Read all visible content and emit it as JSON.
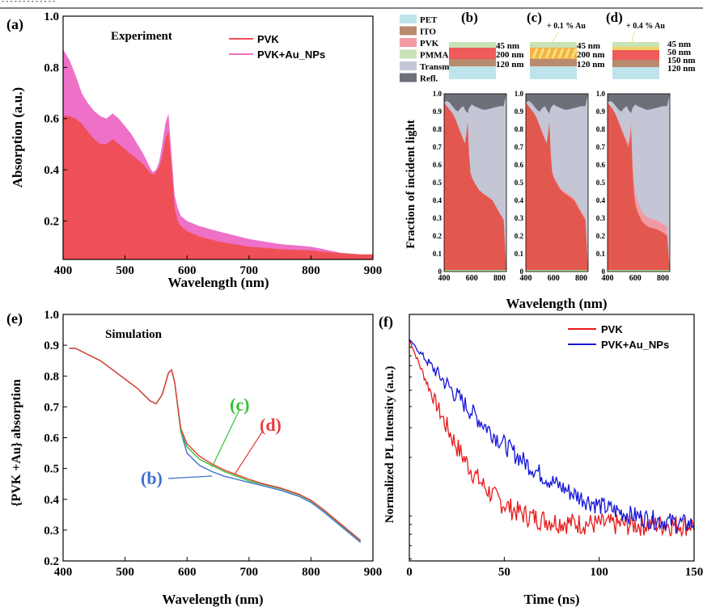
{
  "header_text": "- - - - - - - - - - - - -",
  "legend_items": [
    {
      "label": "PET",
      "color": "#bfe3ea"
    },
    {
      "label": "ITO",
      "color": "#b88a6e"
    },
    {
      "label": "PVK",
      "color": "#f29aa3"
    },
    {
      "label": "PMMA",
      "color": "#c8e3b5"
    },
    {
      "label": "Transm.",
      "color": "#c4c6d6"
    },
    {
      "label": "Refl.",
      "color": "#6d7078"
    }
  ],
  "stacks": [
    {
      "label": "(b)",
      "note": "",
      "layers": [
        "45 nm",
        "200 nm",
        "120 nm"
      ]
    },
    {
      "label": "(c)",
      "note": "+ 0.1 % Au",
      "layers": [
        "45 nm",
        "200 nm",
        "120 nm"
      ]
    },
    {
      "label": "(d)",
      "note": "+ 0.4 % Au",
      "layers": [
        "45 nm",
        "50 nm",
        "150 nm",
        "120 nm"
      ]
    }
  ],
  "chart_data": [
    {
      "id": "a",
      "type": "area",
      "panel_label": "(a)",
      "annotation": "Experiment",
      "xlabel": "Wavelength (nm)",
      "ylabel": "Absorption (a.u.)",
      "xlim": [
        400,
        900
      ],
      "ylim": [
        0.05,
        1.0
      ],
      "xticks": [
        "400",
        "500",
        "600",
        "700",
        "800",
        "900"
      ],
      "yticks": [
        "0.2",
        "0.4",
        "0.6",
        "0.8",
        "1.0"
      ],
      "legend_position": "top-right",
      "x": [
        400,
        410,
        420,
        430,
        440,
        450,
        460,
        470,
        480,
        490,
        500,
        510,
        520,
        530,
        540,
        545,
        550,
        555,
        560,
        565,
        570,
        575,
        580,
        585,
        590,
        600,
        620,
        650,
        700,
        750,
        800,
        820,
        850,
        880,
        900
      ],
      "series": [
        {
          "name": "PVK",
          "color": "#ef4f57",
          "values": [
            0.61,
            0.61,
            0.6,
            0.58,
            0.55,
            0.52,
            0.5,
            0.5,
            0.52,
            0.5,
            0.48,
            0.46,
            0.44,
            0.42,
            0.39,
            0.38,
            0.39,
            0.41,
            0.45,
            0.52,
            0.55,
            0.4,
            0.25,
            0.2,
            0.18,
            0.16,
            0.14,
            0.12,
            0.1,
            0.09,
            0.085,
            0.08,
            0.075,
            0.07,
            0.07
          ]
        },
        {
          "name": "PVK+Au_NPs",
          "color": "#ee70c7",
          "values": [
            0.87,
            0.83,
            0.77,
            0.7,
            0.66,
            0.63,
            0.61,
            0.6,
            0.62,
            0.6,
            0.57,
            0.54,
            0.5,
            0.46,
            0.41,
            0.39,
            0.4,
            0.43,
            0.5,
            0.58,
            0.62,
            0.46,
            0.3,
            0.25,
            0.22,
            0.2,
            0.18,
            0.16,
            0.13,
            0.11,
            0.1,
            0.09,
            0.075,
            0.07,
            0.07
          ]
        }
      ]
    },
    {
      "id": "b-c-d",
      "type": "area",
      "ylabel": "Fraction of incident light",
      "xlabel": "Wavelength (nm)",
      "xlim": [
        400,
        850
      ],
      "ylim": [
        0,
        1.0
      ],
      "xticks": [
        "400",
        "600",
        "800"
      ],
      "yticks": [
        "0",
        "0.1",
        "0.2",
        "0.3",
        "0.4",
        "0.5",
        "0.6",
        "0.7",
        "0.8",
        "0.9",
        "1.0"
      ],
      "x": [
        400,
        420,
        440,
        460,
        480,
        500,
        520,
        540,
        550,
        560,
        570,
        580,
        590,
        600,
        620,
        650,
        680,
        700,
        750,
        800,
        830
      ],
      "panels": [
        {
          "absorbed_pvk": [
            0.95,
            0.93,
            0.91,
            0.89,
            0.86,
            0.82,
            0.78,
            0.74,
            0.72,
            0.77,
            0.84,
            0.66,
            0.56,
            0.53,
            0.5,
            0.46,
            0.44,
            0.43,
            0.4,
            0.33,
            0.29
          ],
          "absorbed_au": [
            0,
            0,
            0,
            0,
            0,
            0,
            0,
            0,
            0,
            0,
            0,
            0,
            0,
            0,
            0,
            0,
            0,
            0,
            0,
            0,
            0
          ],
          "reflected": [
            0.05,
            0.04,
            0.05,
            0.07,
            0.09,
            0.1,
            0.08,
            0.07,
            0.09,
            0.1,
            0.11,
            0.08,
            0.07,
            0.06,
            0.07,
            0.08,
            0.09,
            0.09,
            0.08,
            0.07,
            0.07
          ]
        },
        {
          "absorbed_pvk": [
            0.95,
            0.93,
            0.91,
            0.89,
            0.86,
            0.82,
            0.78,
            0.74,
            0.72,
            0.77,
            0.84,
            0.66,
            0.56,
            0.53,
            0.5,
            0.46,
            0.44,
            0.43,
            0.4,
            0.33,
            0.29
          ],
          "absorbed_au": [
            0,
            0,
            0,
            0,
            0,
            0,
            0,
            0,
            0,
            0,
            0,
            0,
            0.01,
            0.01,
            0.01,
            0.01,
            0.01,
            0.01,
            0.01,
            0.01,
            0.01
          ],
          "reflected": [
            0.05,
            0.04,
            0.05,
            0.07,
            0.09,
            0.1,
            0.08,
            0.07,
            0.09,
            0.1,
            0.11,
            0.08,
            0.07,
            0.06,
            0.07,
            0.08,
            0.09,
            0.09,
            0.08,
            0.07,
            0.07
          ]
        },
        {
          "absorbed_pvk": [
            0.95,
            0.93,
            0.91,
            0.88,
            0.84,
            0.8,
            0.76,
            0.72,
            0.7,
            0.74,
            0.8,
            0.58,
            0.45,
            0.38,
            0.33,
            0.28,
            0.26,
            0.25,
            0.24,
            0.22,
            0.2
          ],
          "absorbed_au": [
            0.0,
            0.0,
            0.0,
            0.0,
            0.01,
            0.01,
            0.01,
            0.02,
            0.02,
            0.03,
            0.04,
            0.06,
            0.07,
            0.07,
            0.06,
            0.05,
            0.05,
            0.05,
            0.05,
            0.05,
            0.05
          ],
          "reflected": [
            0.05,
            0.04,
            0.05,
            0.07,
            0.09,
            0.1,
            0.08,
            0.07,
            0.09,
            0.1,
            0.11,
            0.08,
            0.07,
            0.06,
            0.07,
            0.08,
            0.09,
            0.09,
            0.08,
            0.07,
            0.07
          ]
        }
      ]
    },
    {
      "id": "e",
      "type": "line",
      "panel_label": "(e)",
      "annotation": "Simulation",
      "xlabel": "Wavelength (nm)",
      "ylabel": "{PVK +Au} absorption",
      "xlim": [
        400,
        900
      ],
      "ylim": [
        0.2,
        1.0
      ],
      "xticks": [
        "400",
        "500",
        "600",
        "700",
        "800",
        "900"
      ],
      "yticks": [
        "0.2",
        "0.3",
        "0.4",
        "0.5",
        "0.6",
        "0.7",
        "0.8",
        "0.9",
        "1.0"
      ],
      "x": [
        410,
        420,
        440,
        460,
        480,
        500,
        520,
        540,
        550,
        560,
        570,
        575,
        580,
        590,
        600,
        620,
        640,
        660,
        680,
        700,
        720,
        750,
        780,
        800,
        820,
        850,
        880
      ],
      "series": [
        {
          "name": "(b)",
          "color": "#3f6fd3",
          "values": [
            0.89,
            0.89,
            0.87,
            0.85,
            0.82,
            0.79,
            0.76,
            0.72,
            0.71,
            0.74,
            0.81,
            0.82,
            0.78,
            0.62,
            0.55,
            0.51,
            0.49,
            0.475,
            0.465,
            0.455,
            0.445,
            0.43,
            0.41,
            0.39,
            0.36,
            0.31,
            0.26
          ]
        },
        {
          "name": "(c)",
          "color": "#35c232",
          "values": [
            0.89,
            0.89,
            0.87,
            0.85,
            0.82,
            0.79,
            0.76,
            0.72,
            0.71,
            0.74,
            0.81,
            0.82,
            0.78,
            0.62,
            0.57,
            0.53,
            0.51,
            0.49,
            0.475,
            0.46,
            0.45,
            0.435,
            0.415,
            0.395,
            0.365,
            0.315,
            0.265
          ]
        },
        {
          "name": "(d)",
          "color": "#e83c3c",
          "values": [
            0.89,
            0.89,
            0.87,
            0.85,
            0.82,
            0.79,
            0.76,
            0.72,
            0.71,
            0.74,
            0.81,
            0.82,
            0.78,
            0.63,
            0.58,
            0.54,
            0.515,
            0.495,
            0.48,
            0.465,
            0.452,
            0.437,
            0.417,
            0.397,
            0.367,
            0.317,
            0.267
          ]
        }
      ]
    },
    {
      "id": "f",
      "type": "line",
      "panel_label": "(f)",
      "xlabel": "Time (ns)",
      "ylabel": "Normalized PL Intensity (a.u.)",
      "xlim": [
        0,
        150
      ],
      "ylim": [
        0,
        1
      ],
      "xticks": [
        "0",
        "50",
        "100",
        "150"
      ],
      "legend_position": "top-right",
      "series": [
        {
          "name": "PVK",
          "color": "#e81b1b",
          "tau": 14,
          "floor": 0.08,
          "noise": 0.025
        },
        {
          "name": "PVK+Au_NPs",
          "color": "#1515d8",
          "tau": 29,
          "floor": 0.075,
          "noise": 0.022
        }
      ]
    }
  ]
}
